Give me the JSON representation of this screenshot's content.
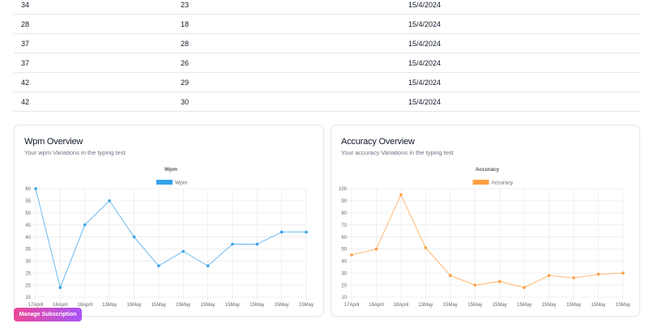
{
  "table": {
    "rows": [
      {
        "wpm": "34",
        "accuracy": "23",
        "date": "15/4/2024"
      },
      {
        "wpm": "28",
        "accuracy": "18",
        "date": "15/4/2024"
      },
      {
        "wpm": "37",
        "accuracy": "28",
        "date": "15/4/2024"
      },
      {
        "wpm": "37",
        "accuracy": "26",
        "date": "15/4/2024"
      },
      {
        "wpm": "42",
        "accuracy": "29",
        "date": "15/4/2024"
      },
      {
        "wpm": "42",
        "accuracy": "30",
        "date": "15/4/2024"
      }
    ]
  },
  "wpm_card": {
    "title": "Wpm Overview",
    "subtitle": "Your wpm Variations in the typing test"
  },
  "accuracy_card": {
    "title": "Accuracy Overview",
    "subtitle": "Your accuracy Variations in the typing test"
  },
  "manage_button": {
    "label": "Manage Subscription"
  },
  "chart_data": [
    {
      "type": "line",
      "title": "Wpm",
      "legend": [
        "Wpm"
      ],
      "legend_position": "top",
      "color": "#36a2eb",
      "categories": [
        "17April",
        "18April",
        "18April",
        "13May",
        "15May",
        "15May",
        "15May",
        "15May",
        "15May",
        "15May",
        "15May",
        "15May"
      ],
      "series": [
        {
          "name": "Wpm",
          "values": [
            60,
            19,
            45,
            55,
            40,
            28,
            34,
            28,
            37,
            37,
            42,
            42
          ]
        }
      ],
      "ylim": [
        15,
        60
      ],
      "yticks": [
        15,
        20,
        25,
        30,
        35,
        40,
        45,
        50,
        55,
        60
      ],
      "grid": true
    },
    {
      "type": "line",
      "title": "Accuracy",
      "legend": [
        "Accuracy"
      ],
      "legend_position": "top",
      "color": "#ff9f40",
      "categories": [
        "17April",
        "18April",
        "18April",
        "13May",
        "15May",
        "15May",
        "15May",
        "15May",
        "15May",
        "15May",
        "15May",
        "15May"
      ],
      "series": [
        {
          "name": "Accuracy",
          "values": [
            45,
            50,
            95,
            51,
            28,
            20,
            23,
            18,
            28,
            26,
            29,
            30
          ]
        }
      ],
      "ylim": [
        10,
        100
      ],
      "yticks": [
        10,
        20,
        30,
        40,
        50,
        60,
        70,
        80,
        90,
        100
      ],
      "grid": true
    }
  ]
}
